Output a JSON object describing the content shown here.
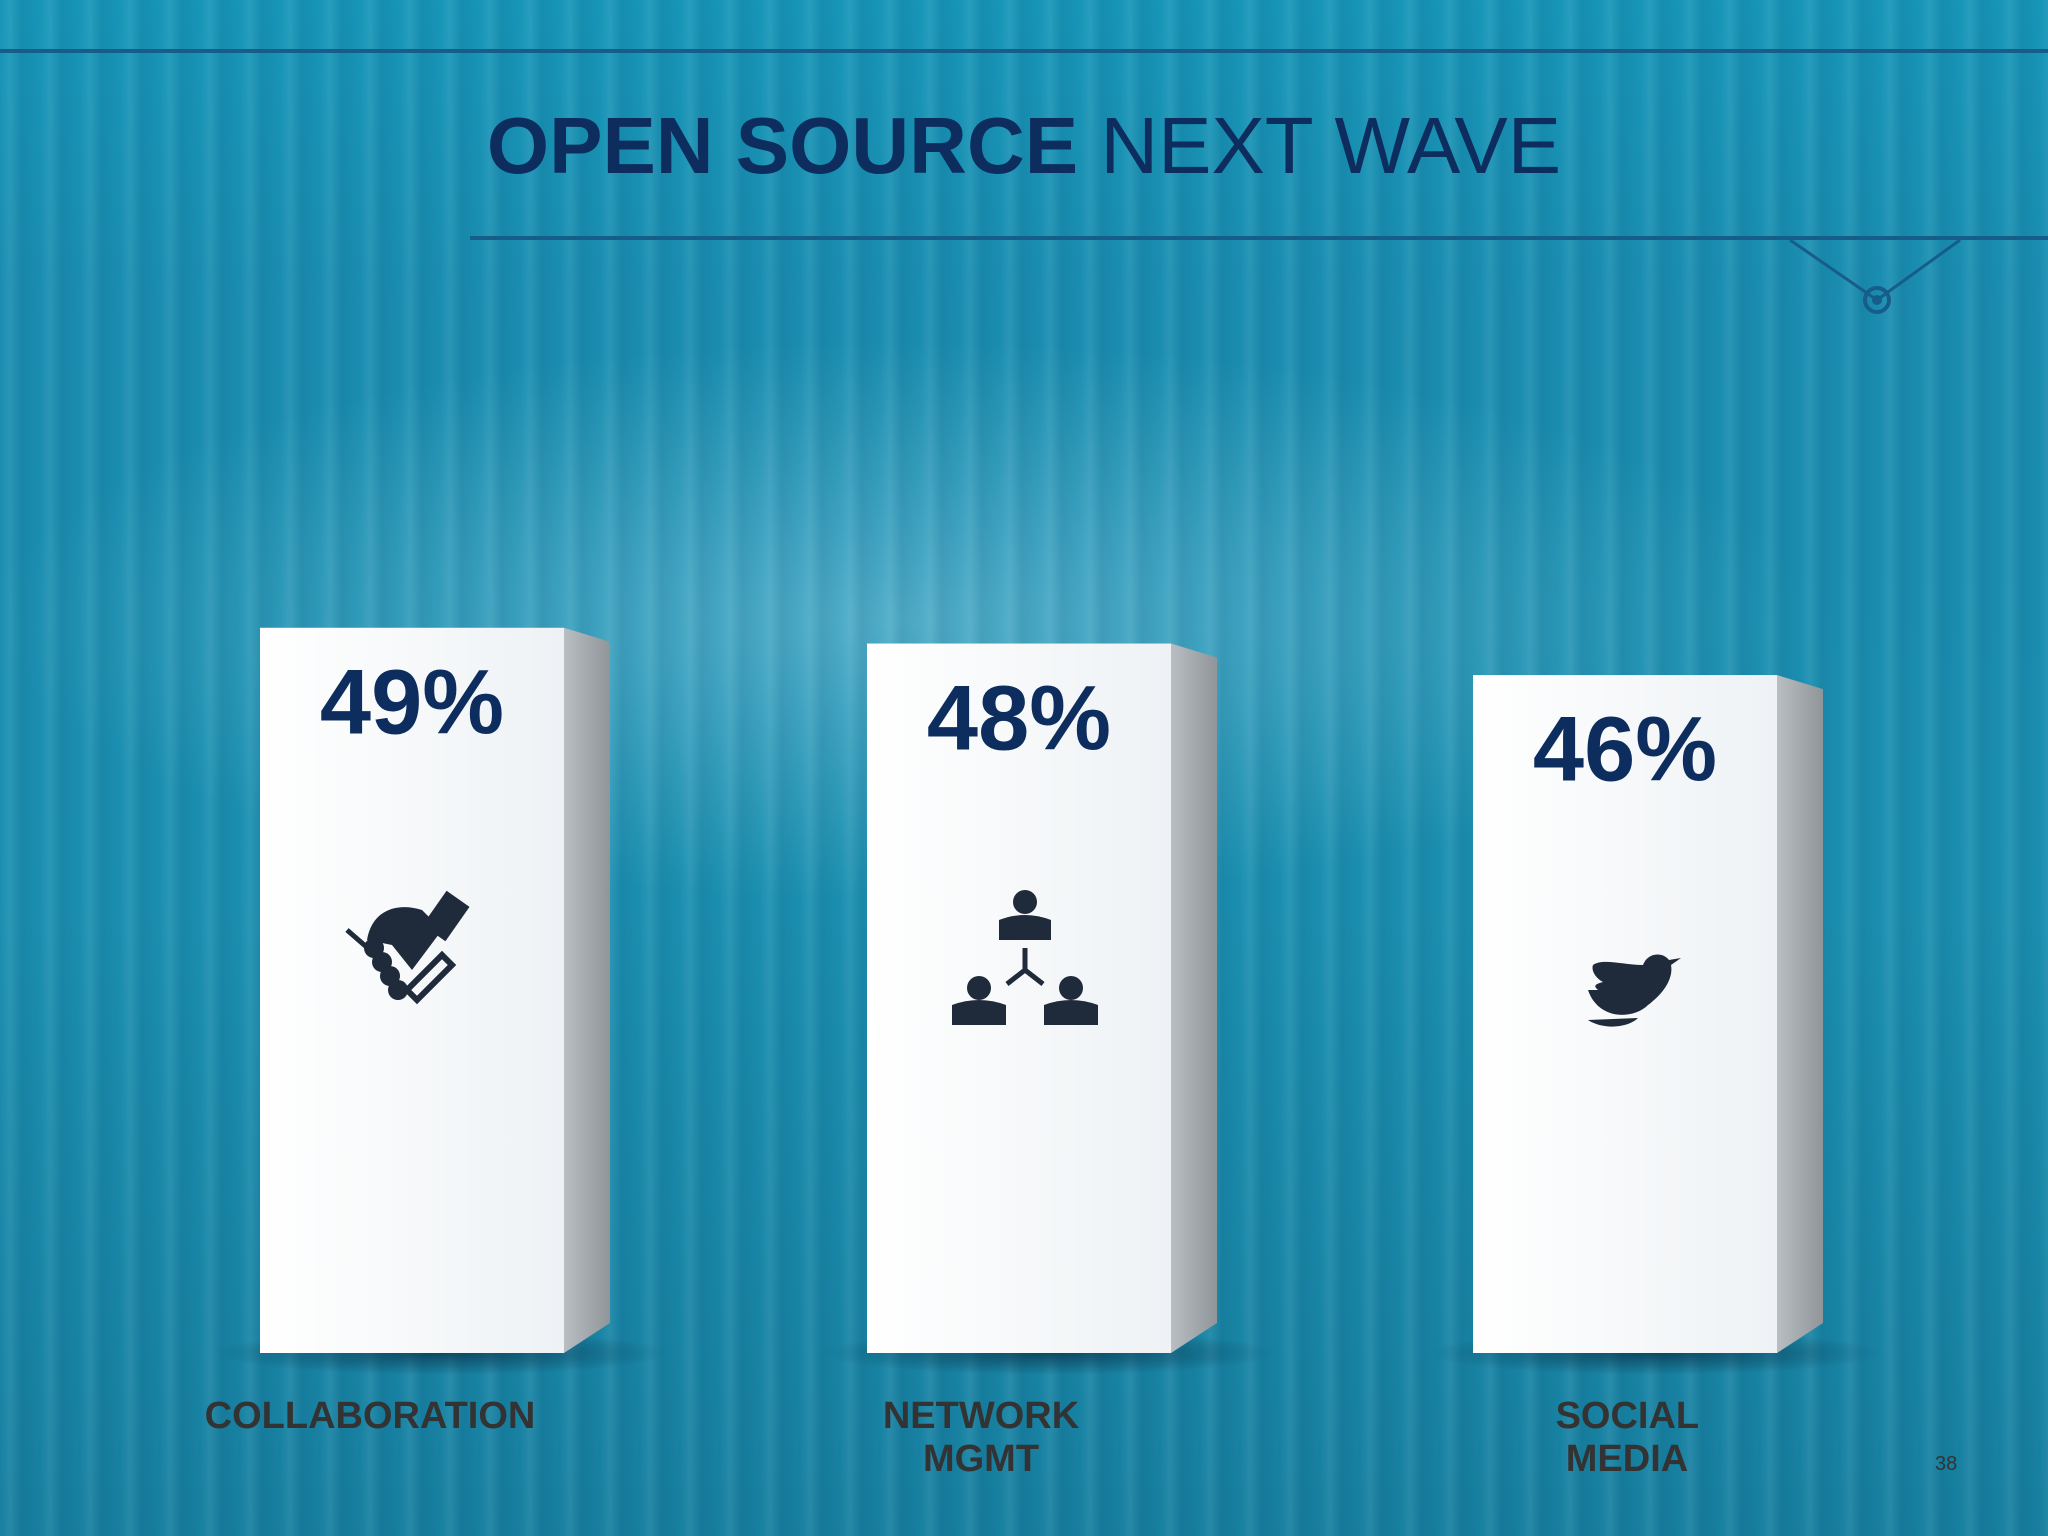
{
  "chart_data": {
    "type": "bar",
    "title": [
      "OPEN SOURCE",
      "NEXT WAVE"
    ],
    "categories": [
      "COLLABORATION",
      "NETWORK MGMT",
      "SOCIAL MEDIA"
    ],
    "values": [
      49,
      48,
      46
    ],
    "value_labels": [
      "49%",
      "48%",
      "46%"
    ],
    "ylim": [
      3,
      50
    ]
  },
  "page_number": "38"
}
